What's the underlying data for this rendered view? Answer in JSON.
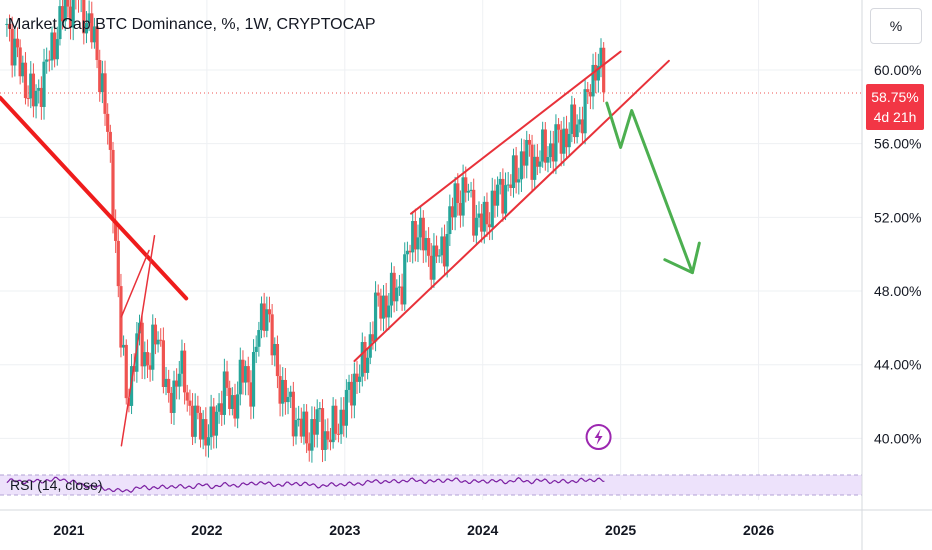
{
  "header": {
    "title": "Market Cap BTC Dominance, %, 1W, CRYPTOCAP",
    "unit_button": "%"
  },
  "price_badge": {
    "value": "58.75%",
    "countdown": "4d 21h"
  },
  "rsi": {
    "label": "RSI (14, close)"
  },
  "colors": {
    "up_candle": "#26a69a",
    "down_candle": "#ef5350",
    "trendline": "#e8323a",
    "projection": "#4caf50",
    "rsi_line": "#7b1fa2",
    "rsi_band": "#ede2fb",
    "lightning_icon": "#9c27b0"
  },
  "chart_data": {
    "type": "candlestick",
    "ylim": [
      38.5,
      63.8
    ],
    "yticks": [
      40,
      44,
      48,
      52,
      56,
      60
    ],
    "yticklabels": [
      "40.00%",
      "44.00%",
      "48.00%",
      "52.00%",
      "56.00%",
      "60.00%"
    ],
    "xlim": [
      2020.5,
      2026.75
    ],
    "xticks": [
      2021,
      2022,
      2023,
      2024,
      2025,
      2026
    ],
    "xticklabels": [
      "2021",
      "2022",
      "2023",
      "2024",
      "2025",
      "2026"
    ],
    "last_value": 58.75,
    "close_series": [
      [
        2020.55,
        62.5
      ],
      [
        2020.65,
        60.0
      ],
      [
        2020.75,
        58.2
      ],
      [
        2020.85,
        60.5
      ],
      [
        2020.95,
        63.0
      ],
      [
        2021.05,
        64.0
      ],
      [
        2021.15,
        62.5
      ],
      [
        2021.25,
        59.0
      ],
      [
        2021.33,
        52.0
      ],
      [
        2021.38,
        45.0
      ],
      [
        2021.42,
        42.0
      ],
      [
        2021.5,
        45.5
      ],
      [
        2021.58,
        44.0
      ],
      [
        2021.65,
        46.0
      ],
      [
        2021.72,
        41.5
      ],
      [
        2021.8,
        44.0
      ],
      [
        2021.88,
        41.5
      ],
      [
        2021.95,
        40.5
      ],
      [
        2022.05,
        40.5
      ],
      [
        2022.12,
        43.0
      ],
      [
        2022.18,
        41.5
      ],
      [
        2022.25,
        43.5
      ],
      [
        2022.32,
        43.0
      ],
      [
        2022.38,
        46.0
      ],
      [
        2022.43,
        47.5
      ],
      [
        2022.48,
        44.5
      ],
      [
        2022.55,
        42.5
      ],
      [
        2022.65,
        41.0
      ],
      [
        2022.72,
        40.0
      ],
      [
        2022.8,
        41.0
      ],
      [
        2022.88,
        40.0
      ],
      [
        2022.95,
        40.8
      ],
      [
        2023.02,
        42.0
      ],
      [
        2023.08,
        43.5
      ],
      [
        2023.15,
        44.0
      ],
      [
        2023.22,
        47.0
      ],
      [
        2023.32,
        47.5
      ],
      [
        2023.42,
        48.5
      ],
      [
        2023.5,
        51.5
      ],
      [
        2023.58,
        50.5
      ],
      [
        2023.65,
        49.5
      ],
      [
        2023.72,
        50.5
      ],
      [
        2023.8,
        53.0
      ],
      [
        2023.88,
        53.5
      ],
      [
        2023.95,
        52.0
      ],
      [
        2024.0,
        51.5
      ],
      [
        2024.08,
        53.0
      ],
      [
        2024.15,
        53.5
      ],
      [
        2024.22,
        54.0
      ],
      [
        2024.3,
        55.5
      ],
      [
        2024.38,
        55.0
      ],
      [
        2024.45,
        55.5
      ],
      [
        2024.52,
        56.0
      ],
      [
        2024.6,
        56.5
      ],
      [
        2024.68,
        57.0
      ],
      [
        2024.75,
        58.0
      ],
      [
        2024.82,
        60.5
      ],
      [
        2024.86,
        60.0
      ],
      [
        2024.89,
        58.75
      ]
    ],
    "rsi_series": [
      [
        2020.55,
        58
      ],
      [
        2020.75,
        57
      ],
      [
        2020.95,
        62
      ],
      [
        2021.1,
        50
      ],
      [
        2021.25,
        44
      ],
      [
        2021.35,
        38
      ],
      [
        2021.45,
        40
      ],
      [
        2021.55,
        46
      ],
      [
        2021.65,
        44
      ],
      [
        2021.75,
        48
      ],
      [
        2021.85,
        45
      ],
      [
        2021.95,
        50
      ],
      [
        2022.05,
        47
      ],
      [
        2022.15,
        51
      ],
      [
        2022.25,
        49
      ],
      [
        2022.35,
        55
      ],
      [
        2022.45,
        52
      ],
      [
        2022.55,
        50
      ],
      [
        2022.65,
        54
      ],
      [
        2022.75,
        50
      ],
      [
        2022.85,
        48
      ],
      [
        2022.95,
        52
      ],
      [
        2023.05,
        51
      ],
      [
        2023.15,
        55
      ],
      [
        2023.25,
        58
      ],
      [
        2023.35,
        56
      ],
      [
        2023.45,
        60
      ],
      [
        2023.55,
        58
      ],
      [
        2023.65,
        57
      ],
      [
        2023.75,
        61
      ],
      [
        2023.85,
        58
      ],
      [
        2023.95,
        56
      ],
      [
        2024.05,
        59
      ],
      [
        2024.15,
        56
      ],
      [
        2024.25,
        60
      ],
      [
        2024.35,
        57
      ],
      [
        2024.45,
        59
      ],
      [
        2024.55,
        56
      ],
      [
        2024.65,
        58
      ],
      [
        2024.75,
        59
      ],
      [
        2024.82,
        62
      ],
      [
        2024.89,
        57
      ]
    ],
    "rsi_ylim": [
      20,
      80
    ],
    "rsi_band": [
      30,
      70
    ],
    "drawings": {
      "channel_upper": [
        [
          2023.48,
          52.2
        ],
        [
          2025.0,
          61.0
        ]
      ],
      "channel_lower": [
        [
          2023.07,
          44.2
        ],
        [
          2025.35,
          60.5
        ]
      ],
      "downtrend": [
        [
          2020.5,
          58.5
        ],
        [
          2021.85,
          47.6
        ]
      ],
      "wedge_left": [
        [
          2021.38,
          39.6
        ],
        [
          2021.62,
          51.0
        ]
      ],
      "wedge_right": [
        [
          2021.38,
          46.6
        ],
        [
          2021.58,
          50.2
        ]
      ],
      "projection": [
        [
          2024.9,
          58.2
        ],
        [
          2025.0,
          55.8
        ],
        [
          2025.08,
          57.8
        ],
        [
          2025.52,
          49.0
        ]
      ],
      "projection_arrowhead": [
        [
          2025.32,
          49.7
        ],
        [
          2025.52,
          49.0
        ],
        [
          2025.57,
          50.6
        ]
      ]
    }
  }
}
